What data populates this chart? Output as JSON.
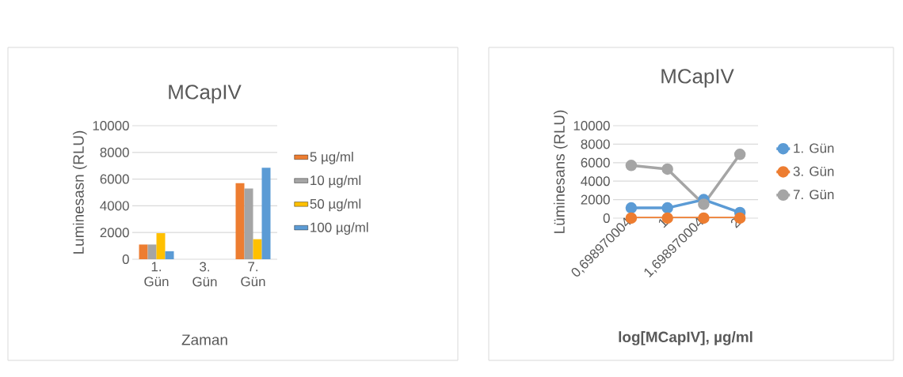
{
  "chart_data": [
    {
      "type": "bar",
      "title": "MCapIV",
      "xlabel": "Zaman",
      "ylabel": "Luminesasn (RLU)",
      "categories": [
        "1. Gün",
        "3. Gün",
        "7. Gün"
      ],
      "series": [
        {
          "name": "5 µg/ml",
          "color": "#ed7d31",
          "values": [
            1100,
            0,
            5700
          ]
        },
        {
          "name": "10 µg/ml",
          "color": "#a5a5a5",
          "values": [
            1100,
            0,
            5300
          ]
        },
        {
          "name": "50 µg/ml",
          "color": "#ffc000",
          "values": [
            1950,
            0,
            1500
          ]
        },
        {
          "name": "100 µg/ml",
          "color": "#5b9bd5",
          "values": [
            600,
            0,
            6850
          ]
        }
      ],
      "ylim": [
        0,
        10000
      ],
      "yticks": [
        0,
        2000,
        4000,
        6000,
        8000,
        10000
      ],
      "grid": "y",
      "legend": "right"
    },
    {
      "type": "line",
      "title": "MCapIV",
      "xlabel": "**log[MCapIV], µg/ml**",
      "ylabel": "Lüminesans (RLU)",
      "categories": [
        "0,698970004",
        "1",
        "1,698970004",
        "2"
      ],
      "series": [
        {
          "name": "1. Gün",
          "color": "#5b9bd5",
          "values": [
            1100,
            1100,
            2000,
            600
          ]
        },
        {
          "name": "3. Gün",
          "color": "#ed7d31",
          "values": [
            0,
            0,
            0,
            0
          ]
        },
        {
          "name": "7. Gün",
          "color": "#a5a5a5",
          "values": [
            5700,
            5300,
            1500,
            6900
          ]
        }
      ],
      "ylim": [
        0,
        10000
      ],
      "yticks": [
        0,
        2000,
        4000,
        6000,
        8000,
        10000
      ],
      "grid": "y",
      "legend": "right",
      "marker": "circle"
    }
  ]
}
